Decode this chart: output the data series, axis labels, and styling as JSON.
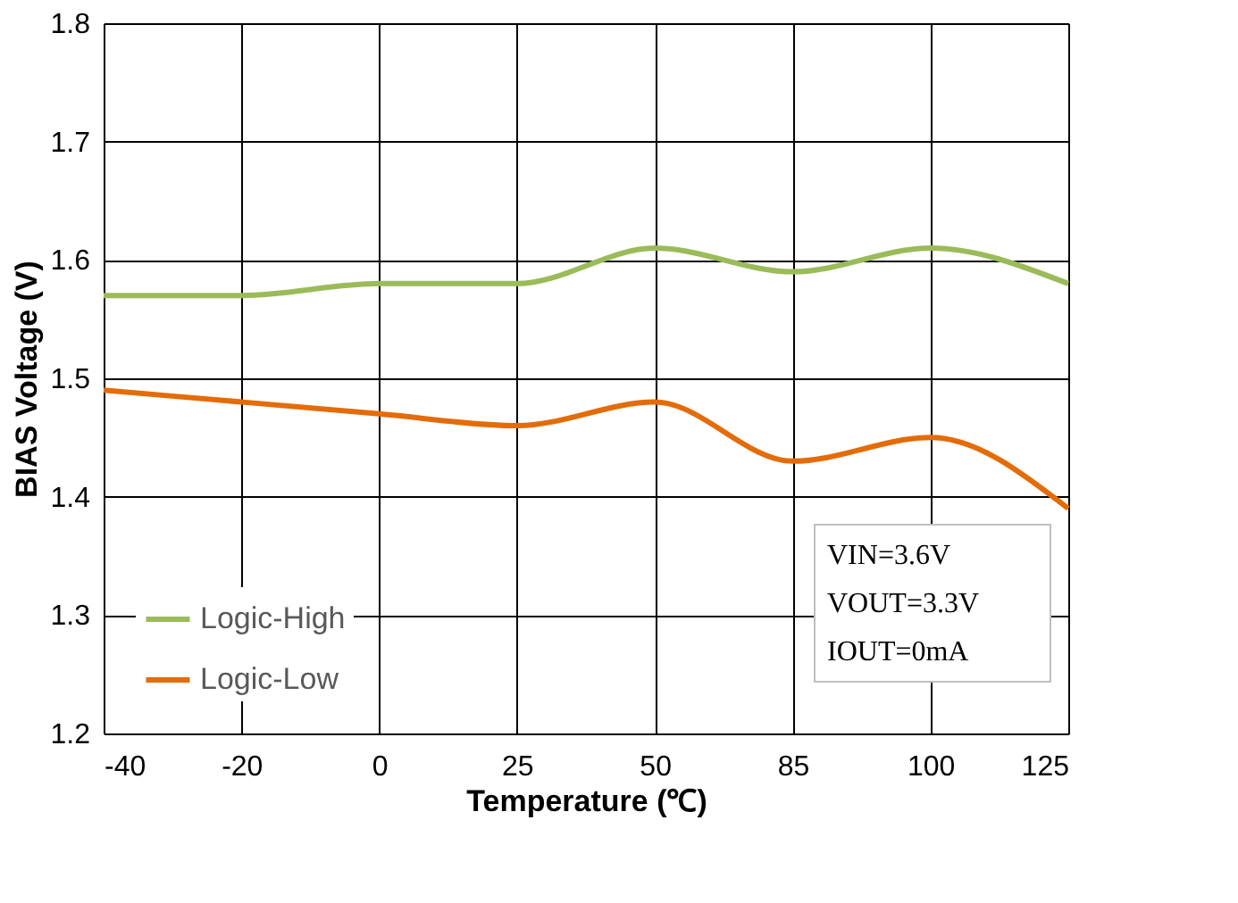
{
  "chart_data": {
    "type": "line",
    "xlabel": "Temperature (℃)",
    "ylabel": "BIAS Voltage (V)",
    "categories": [
      "-40",
      "-20",
      "0",
      "25",
      "50",
      "85",
      "100",
      "125"
    ],
    "series": [
      {
        "name": "Logic-High",
        "color": "#9bbb59",
        "values": [
          1.57,
          1.57,
          1.58,
          1.58,
          1.61,
          1.59,
          1.61,
          1.58
        ]
      },
      {
        "name": "Logic-Low",
        "color": "#e36c09",
        "values": [
          1.49,
          1.48,
          1.47,
          1.46,
          1.48,
          1.43,
          1.45,
          1.39
        ]
      }
    ],
    "ylim": [
      1.2,
      1.8
    ],
    "yticks": [
      1.2,
      1.3,
      1.4,
      1.5,
      1.6,
      1.7,
      1.8
    ],
    "grid": true,
    "legend": "bottom left",
    "marker": "none",
    "line_style": "solid",
    "annotations": [
      "VIN=3.6V",
      "VOUT=3.3V",
      "IOUT=0mA"
    ]
  }
}
